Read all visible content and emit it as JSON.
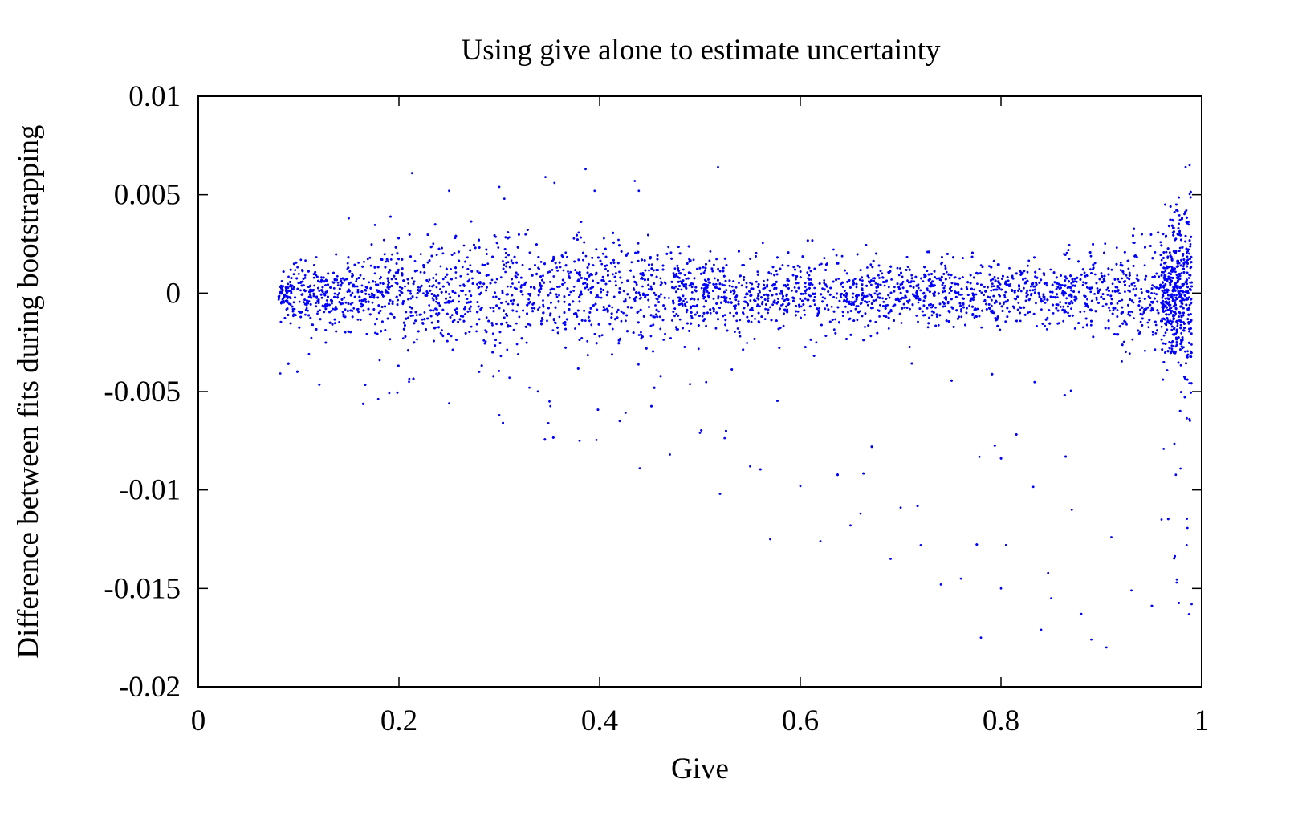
{
  "chart_data": {
    "type": "scatter",
    "title": "Using give alone to estimate uncertainty",
    "xlabel": "Give",
    "ylabel": "Difference between fits during bootstrapping",
    "xlim": [
      0,
      1
    ],
    "ylim": [
      -0.02,
      0.01
    ],
    "xticks": [
      {
        "value": 0,
        "label": "0"
      },
      {
        "value": 0.2,
        "label": "0.2"
      },
      {
        "value": 0.4,
        "label": "0.4"
      },
      {
        "value": 0.6,
        "label": "0.6"
      },
      {
        "value": 0.8,
        "label": "0.8"
      },
      {
        "value": 1,
        "label": "1"
      }
    ],
    "yticks": [
      {
        "value": 0.01,
        "label": "0.01"
      },
      {
        "value": 0.005,
        "label": "0.005"
      },
      {
        "value": 0,
        "label": "0"
      },
      {
        "value": -0.005,
        "label": "-0.005"
      },
      {
        "value": -0.01,
        "label": "-0.01"
      },
      {
        "value": -0.015,
        "label": "-0.015"
      },
      {
        "value": -0.02,
        "label": "-0.02"
      }
    ],
    "grid": false,
    "legend": "none",
    "point_color": "#0000ff",
    "series": [
      {
        "points_note_shape": "dense band around 0",
        "x_range": [
          0.08,
          0.99
        ],
        "outliers": [
          [
            0.213,
            0.0061
          ],
          [
            0.386,
            0.0063
          ],
          [
            0.518,
            0.0064
          ],
          [
            0.346,
            0.0059
          ],
          [
            0.435,
            0.0057
          ],
          [
            0.988,
            0.0065
          ],
          [
            0.984,
            0.0064
          ],
          [
            0.439,
            0.0052
          ],
          [
            0.395,
            0.0052
          ],
          [
            0.25,
            0.0052
          ],
          [
            0.3,
            0.0054
          ],
          [
            0.355,
            0.0056
          ],
          [
            0.15,
            0.0038
          ],
          [
            0.305,
            0.0048
          ],
          [
            0.21,
            -0.0045
          ],
          [
            0.25,
            -0.0056
          ],
          [
            0.3,
            -0.0062
          ],
          [
            0.38,
            -0.0075
          ],
          [
            0.44,
            -0.0089
          ],
          [
            0.5,
            -0.0071
          ],
          [
            0.57,
            -0.0125
          ],
          [
            0.62,
            -0.0126
          ],
          [
            0.66,
            -0.0112
          ],
          [
            0.69,
            -0.0135
          ],
          [
            0.74,
            -0.0148
          ],
          [
            0.78,
            -0.0175
          ],
          [
            0.84,
            -0.0171
          ],
          [
            0.89,
            -0.0176
          ],
          [
            0.905,
            -0.018
          ],
          [
            0.93,
            -0.0151
          ],
          [
            0.88,
            -0.0163
          ],
          [
            0.85,
            -0.0155
          ],
          [
            0.8,
            -0.015
          ],
          [
            0.76,
            -0.0145
          ],
          [
            0.72,
            -0.0128
          ],
          [
            0.7,
            -0.0109
          ],
          [
            0.65,
            -0.0118
          ],
          [
            0.6,
            -0.0098
          ],
          [
            0.55,
            -0.0088
          ],
          [
            0.52,
            -0.0102
          ],
          [
            0.47,
            -0.0082
          ],
          [
            0.42,
            -0.0065
          ],
          [
            0.35,
            -0.0055
          ],
          [
            0.33,
            -0.0048
          ],
          [
            0.28,
            -0.004
          ],
          [
            0.91,
            -0.0124
          ],
          [
            0.985,
            -0.0128
          ],
          [
            0.99,
            -0.0158
          ],
          [
            0.975,
            -0.0147
          ],
          [
            0.96,
            -0.0115
          ]
        ]
      }
    ]
  }
}
